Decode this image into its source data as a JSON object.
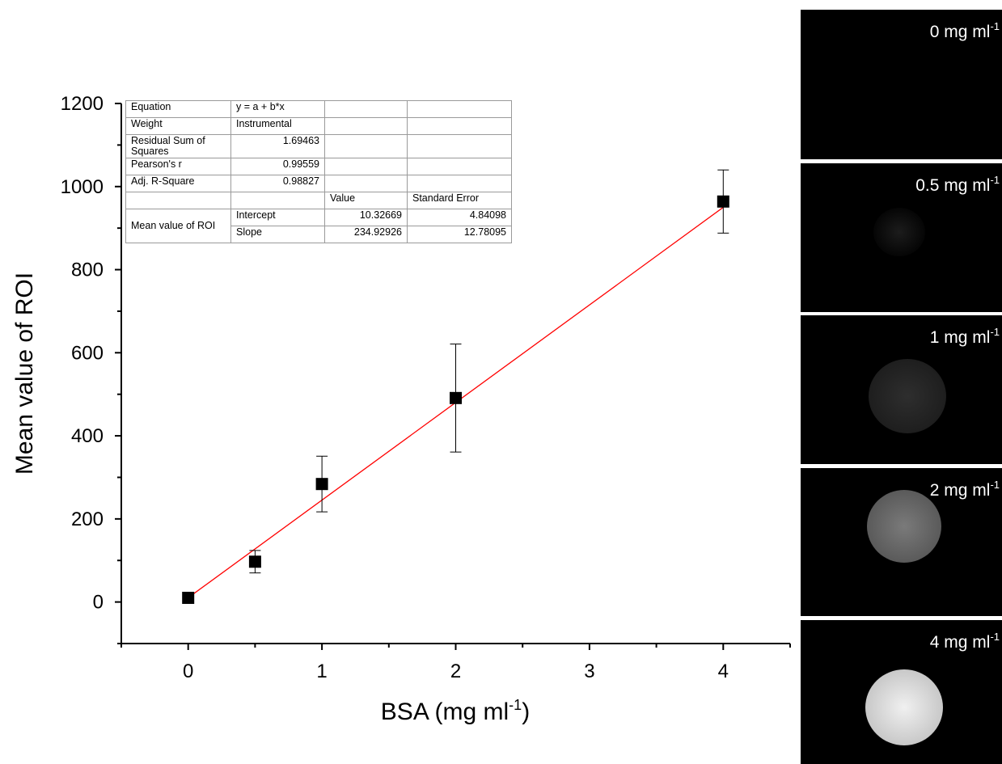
{
  "chart_data": {
    "type": "scatter",
    "x_label": {
      "text": "BSA (mg ml",
      "exponent": "-1",
      "suffix": ")"
    },
    "y_label": "Mean value of ROI",
    "x": [
      0,
      0.5,
      1,
      2,
      4
    ],
    "series": [
      {
        "name": "Mean value of ROI",
        "color": "#000000",
        "values": [
          10,
          97,
          284,
          491,
          964
        ],
        "errors": [
          5,
          27,
          67,
          130,
          76
        ]
      }
    ],
    "fit_line": {
      "color": "#ff0000",
      "x": [
        0,
        4
      ],
      "values": [
        10.33,
        950.04
      ]
    },
    "xlim": [
      -0.5,
      4.5
    ],
    "ylim": [
      -100,
      1200
    ],
    "xticks": [
      0,
      1,
      2,
      3,
      4
    ],
    "yticks": [
      0,
      200,
      400,
      600,
      800,
      1000,
      1200
    ],
    "xminorticks": [
      -0.5,
      0.5,
      1.5,
      2.5,
      3.5,
      4.5
    ],
    "yminorticks": [
      -100,
      100,
      300,
      500,
      700,
      900,
      1100
    ],
    "fit_table": {
      "rows": [
        [
          "Equation",
          "y = a + b*x"
        ],
        [
          "Weight",
          "Instrumental"
        ],
        [
          "Residual Sum of Squares",
          "1.69463"
        ],
        [
          "Pearson's r",
          "0.99559"
        ],
        [
          "Adj. R-Square",
          "0.98827"
        ]
      ],
      "header": [
        "Value",
        "Standard Error"
      ],
      "group": "Mean value of ROI",
      "params": [
        [
          "Intercept",
          "10.32669",
          "4.84098"
        ],
        [
          "Slope",
          "234.92926",
          "12.78095"
        ]
      ]
    },
    "panels": [
      {
        "label": "0 mg ml",
        "exponent": "-1"
      },
      {
        "label": "0.5 mg ml",
        "exponent": "-1"
      },
      {
        "label": "1 mg ml",
        "exponent": "-1"
      },
      {
        "label": "2 mg ml",
        "exponent": "-1"
      },
      {
        "label": "4 mg ml",
        "exponent": "-1"
      }
    ]
  }
}
